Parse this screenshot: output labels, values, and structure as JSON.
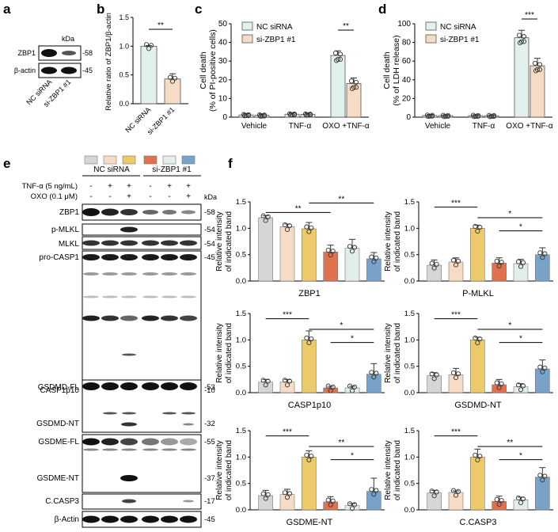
{
  "panel_letters": {
    "a": "a",
    "b": "b",
    "c": "c",
    "d": "d",
    "e": "e",
    "f": "f"
  },
  "colors": {
    "gray": "#d6d6d6",
    "peach": "#f6dcc5",
    "yellow": "#ecca6a",
    "orange": "#e0714e",
    "pale": "#e2eeec",
    "blue": "#78a2c8",
    "nc": "#e3f1ec",
    "si": "#f6dcc5"
  },
  "panel_a": {
    "kda_label": "kDa",
    "rows": [
      {
        "name": "ZBP1",
        "kda": "-58"
      },
      {
        "name": "β-actin",
        "kda": "-45"
      }
    ],
    "lanes": [
      "NC siRNA",
      "si-ZBP1 #1"
    ]
  },
  "panel_e": {
    "groups": [
      "NC siRNA",
      "si-ZBP1 #1"
    ],
    "treatments": [
      {
        "label": "TNF-α (5 ng/mL)",
        "values": [
          "-",
          "+",
          "+",
          "-",
          "+",
          "+"
        ]
      },
      {
        "label": "OXO (0.1 μM)",
        "values": [
          "-",
          "-",
          "+",
          "-",
          "-",
          "+"
        ]
      }
    ],
    "kda_label": "kDa",
    "blots": [
      {
        "label": "ZBP1",
        "kda": "-58"
      },
      {
        "label": "p-MLKL",
        "kda": "-54"
      },
      {
        "label": "MLKL",
        "kda": "-54"
      },
      {
        "label": "pro-CASP1",
        "kda": "-45"
      },
      {
        "label": "CASP1p10",
        "kda": "-10"
      },
      {
        "label": "GSDMD-FL",
        "kda": "-53"
      },
      {
        "label": "GSDMD-NT",
        "kda": "-32"
      },
      {
        "label": "GSDME-FL",
        "kda": "-55"
      },
      {
        "label": "GSDME-NT",
        "kda": "-37"
      },
      {
        "label": "C.CASP3",
        "kda": "-17"
      },
      {
        "label": "β-Actin",
        "kda": "-45"
      }
    ]
  },
  "chart_data": [
    {
      "id": "b",
      "type": "bar",
      "title": "",
      "ylabel": "Relative ratio of ZBP1/β-actin",
      "categories": [
        "NC siRNA",
        "si-ZBP1 #1"
      ],
      "values": [
        1.0,
        0.43
      ],
      "errors": [
        0.01,
        0.09
      ],
      "ylim": [
        0,
        1.5
      ],
      "yticks": [
        "0.0",
        "0.5",
        "1.0",
        "1.5"
      ],
      "significance": [
        "**"
      ]
    },
    {
      "id": "c",
      "type": "bar",
      "ylabel_lines": [
        "Cell death",
        "(% of PI-positive cells)"
      ],
      "categories": [
        "Vehicle",
        "TNF-α",
        "OXO +TNF-α"
      ],
      "series": [
        {
          "name": "NC siRNA",
          "values": [
            1.2,
            1.6,
            33
          ]
        },
        {
          "name": "si-ZBP1 #1",
          "values": [
            1.0,
            1.5,
            18
          ]
        }
      ],
      "errors": [
        [
          0.8,
          0.8
        ],
        [
          0.8,
          0.8
        ],
        [
          2.5,
          3
        ]
      ],
      "ylim": [
        0,
        50
      ],
      "yticks": [
        "0",
        "10",
        "20",
        "30",
        "40",
        "50"
      ],
      "significance": [
        "**"
      ]
    },
    {
      "id": "d",
      "type": "bar",
      "ylabel_lines": [
        "Cell death",
        "(% of LDH release)"
      ],
      "categories": [
        "Vehicle",
        "TNF-α",
        "OXO +TNF-α"
      ],
      "series": [
        {
          "name": "NC siRNA",
          "values": [
            1.8,
            1.6,
            85
          ]
        },
        {
          "name": "si-ZBP1 #1",
          "values": [
            1.6,
            1.5,
            55
          ]
        }
      ],
      "errors": [
        [
          0.8,
          0.8
        ],
        [
          0.8,
          0.8
        ],
        [
          8,
          8
        ]
      ],
      "ylim": [
        0,
        100
      ],
      "yticks": [
        "0",
        "20",
        "40",
        "60",
        "80",
        "100"
      ],
      "significance": [
        "***"
      ]
    },
    {
      "id": "f1",
      "type": "bar",
      "xlabel": "ZBP1",
      "ylim": [
        0,
        1.5
      ],
      "yticks": [
        "0.0",
        "0.5",
        "1.0",
        "1.5"
      ],
      "values": [
        1.2,
        1.03,
        0.99,
        0.55,
        0.62,
        0.42
      ],
      "errors": [
        0.04,
        0.05,
        0.12,
        0.13,
        0.17,
        0.12
      ],
      "sig": [
        {
          "a": 0,
          "b": 3,
          "label": "**"
        },
        {
          "a": 2,
          "b": 5,
          "label": "**"
        }
      ]
    },
    {
      "id": "f2",
      "type": "bar",
      "xlabel": "P-MLKL",
      "ylim": [
        0,
        1.5
      ],
      "yticks": [
        "0.0",
        "0.5",
        "1.0",
        "1.5"
      ],
      "values": [
        0.3,
        0.36,
        1.0,
        0.34,
        0.33,
        0.5
      ],
      "errors": [
        0.1,
        0.08,
        0.06,
        0.1,
        0.08,
        0.13
      ],
      "sig": [
        {
          "a": 0,
          "b": 2,
          "label": "***"
        },
        {
          "a": 2,
          "b": 5,
          "label": "*"
        },
        {
          "a": 3,
          "b": 5,
          "label": "*"
        }
      ]
    },
    {
      "id": "f3",
      "type": "bar",
      "xlabel": "CASP1p10",
      "ylim": [
        0,
        1.5
      ],
      "yticks": [
        "0.0",
        "0.5",
        "1.0",
        "1.5"
      ],
      "values": [
        0.2,
        0.2,
        1.0,
        0.09,
        0.09,
        0.35
      ],
      "errors": [
        0.05,
        0.05,
        0.17,
        0.03,
        0.03,
        0.2
      ],
      "sig": [
        {
          "a": 0,
          "b": 2,
          "label": "***"
        },
        {
          "a": 2,
          "b": 5,
          "label": "*"
        },
        {
          "a": 3,
          "b": 5,
          "label": "*"
        }
      ]
    },
    {
      "id": "f4",
      "type": "bar",
      "xlabel": "GSDMD-NT",
      "ylim": [
        0,
        1.5
      ],
      "yticks": [
        "0.0",
        "0.5",
        "1.0",
        "1.5"
      ],
      "values": [
        0.32,
        0.34,
        1.0,
        0.15,
        0.11,
        0.45
      ],
      "errors": [
        0.06,
        0.12,
        0.05,
        0.1,
        0.06,
        0.17
      ],
      "sig": [
        {
          "a": 0,
          "b": 2,
          "label": "***"
        },
        {
          "a": 2,
          "b": 5,
          "label": "*"
        },
        {
          "a": 3,
          "b": 5,
          "label": "*"
        }
      ]
    },
    {
      "id": "f5",
      "type": "bar",
      "xlabel": "GSDME-NT",
      "ylim": [
        0,
        1.5
      ],
      "yticks": [
        "0.0",
        "0.5",
        "1.0",
        "1.5"
      ],
      "values": [
        0.27,
        0.29,
        1.0,
        0.15,
        0.08,
        0.35
      ],
      "errors": [
        0.1,
        0.1,
        0.12,
        0.1,
        0.04,
        0.25
      ],
      "sig": [
        {
          "a": 0,
          "b": 2,
          "label": "***"
        },
        {
          "a": 2,
          "b": 5,
          "label": "**"
        },
        {
          "a": 3,
          "b": 5,
          "label": "*"
        }
      ]
    },
    {
      "id": "f6",
      "type": "bar",
      "xlabel": "C.CASP3",
      "ylim": [
        0,
        1.5
      ],
      "yticks": [
        "0.0",
        "0.5",
        "1.0",
        "1.5"
      ],
      "values": [
        0.32,
        0.33,
        1.0,
        0.16,
        0.19,
        0.62
      ],
      "errors": [
        0.05,
        0.03,
        0.15,
        0.1,
        0.05,
        0.18
      ],
      "sig": [
        {
          "a": 0,
          "b": 2,
          "label": "***"
        },
        {
          "a": 2,
          "b": 5,
          "label": "**"
        },
        {
          "a": 3,
          "b": 5,
          "label": "*"
        }
      ]
    }
  ],
  "panel_f": {
    "ylabel_lines": [
      "Relative intensity",
      "of indicated band"
    ]
  },
  "legend": {
    "nc": "NC siRNA",
    "si": "si-ZBP1 #1"
  }
}
